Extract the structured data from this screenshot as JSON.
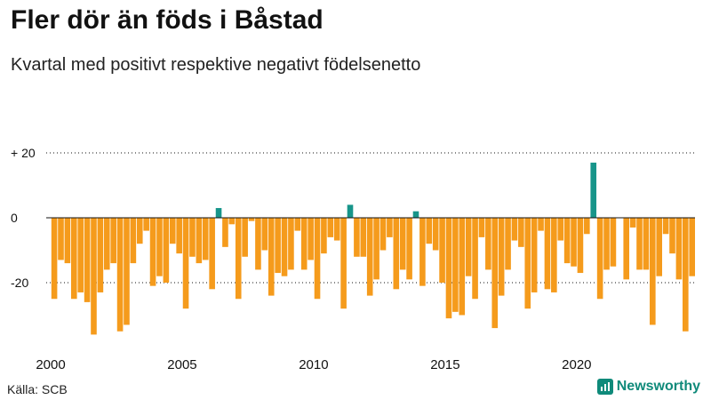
{
  "header": {
    "title": "Fler dör än föds i Båstad",
    "subtitle": "Kvartal med positivt respektive negativt födelsenetto"
  },
  "footer": {
    "source": "Källa: SCB",
    "brand": "Newsworthy"
  },
  "colors": {
    "positive": "#17958a",
    "negative": "#f59b1c",
    "axis": "#111111",
    "brand": "#0f8a7a"
  },
  "chart_data": {
    "type": "bar",
    "title": "Fler dör än föds i Båstad",
    "subtitle": "Kvartal med positivt respektive negativt födelsenetto",
    "xlabel": "",
    "ylabel": "",
    "ylim": [
      -38,
      22
    ],
    "yticks": [
      20,
      0,
      -20
    ],
    "ytick_labels": [
      "+ 20",
      "0",
      "-20"
    ],
    "xtick_years": [
      2000,
      2005,
      2010,
      2015,
      2020
    ],
    "start_year": 2000,
    "periods_per_year": 4,
    "values": [
      -25,
      -13,
      -14,
      -25,
      -23,
      -26,
      -36,
      -23,
      -16,
      -14,
      -35,
      -33,
      -14,
      -8,
      -4,
      -21,
      -18,
      -20,
      -8,
      -11,
      -28,
      -12,
      -14,
      -13,
      -22,
      3,
      -9,
      -2,
      -25,
      -12,
      -1,
      -16,
      -10,
      -24,
      -17,
      -18,
      -16,
      -4,
      -16,
      -13,
      -25,
      -11,
      -6,
      -7,
      -28,
      4,
      -12,
      -12,
      -24,
      -19,
      -10,
      -6,
      -22,
      -16,
      -19,
      2,
      -21,
      -8,
      -10,
      -20,
      -31,
      -29,
      -30,
      -18,
      -25,
      -6,
      -16,
      -34,
      -24,
      -16,
      -7,
      -9,
      -28,
      -23,
      -4,
      -22,
      -23,
      -7,
      -14,
      -15,
      -17,
      -5,
      17,
      -25,
      -16,
      -15,
      0,
      -19,
      -3,
      -16,
      -16,
      -33,
      -18,
      -5,
      -11,
      -19,
      -35,
      -18
    ]
  }
}
